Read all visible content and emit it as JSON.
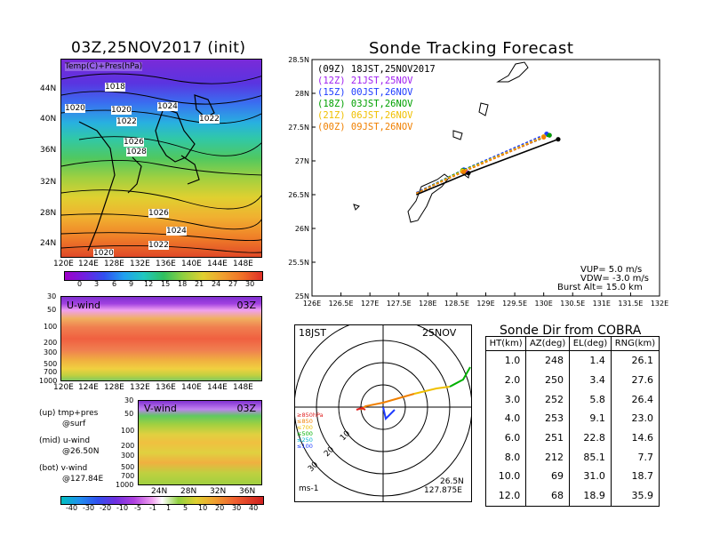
{
  "left": {
    "map_title": "03Z,25NOV2017 (init)",
    "map_field": "Temp(C)+Pres(hPa)",
    "map_lat_ticks": [
      "44N",
      "40N",
      "36N",
      "32N",
      "28N",
      "24N"
    ],
    "map_lon_ticks": [
      "120E",
      "124E",
      "128E",
      "132E",
      "136E",
      "140E",
      "144E",
      "148E"
    ],
    "isobars": [
      "1018",
      "1020",
      "1020",
      "1024",
      "1022",
      "1022",
      "1026",
      "1028",
      "1026",
      "1024",
      "1022",
      "1020"
    ],
    "temp_colorbar": [
      "0",
      "3",
      "6",
      "9",
      "12",
      "15",
      "18",
      "21",
      "24",
      "27",
      "30"
    ],
    "u_title": "U-wind",
    "u_time": "03Z",
    "u_p_ticks": [
      "30",
      "50",
      "100",
      "200",
      "300",
      "500",
      "700",
      "1000"
    ],
    "u_lon_ticks": [
      "120E",
      "124E",
      "128E",
      "132E",
      "136E",
      "140E",
      "144E",
      "148E"
    ],
    "v_title": "V-wind",
    "v_time": "03Z",
    "v_p_ticks": [
      "30",
      "50",
      "100",
      "200",
      "300",
      "500",
      "700",
      "1000"
    ],
    "v_lat_ticks": [
      "24N",
      "28N",
      "32N",
      "36N"
    ],
    "legend_up": "(up) tmp+pres",
    "legend_up2": "@surf",
    "legend_mid": "(mid) u-wind",
    "legend_mid2": "@26.50N",
    "legend_bot": "(bot) v-wind",
    "legend_bot2": "@127.84E",
    "wind_colorbar": [
      "-40",
      "-30",
      "-20",
      "-10",
      "-5",
      "-1",
      "1",
      "5",
      "10",
      "20",
      "30",
      "40"
    ]
  },
  "tracking": {
    "title": "Sonde Tracking Forecast",
    "legend": [
      {
        "label": "(09Z)  18JST,25NOV2017",
        "color": "#000000"
      },
      {
        "label": "(12Z)  21JST,25NOV",
        "color": "#a020f0"
      },
      {
        "label": "(15Z)  00JST,26NOV",
        "color": "#1e3cff"
      },
      {
        "label": "(18Z)  03JST,26NOV",
        "color": "#00a000"
      },
      {
        "label": "(21Z)  06JST,26NOV",
        "color": "#f0c000"
      },
      {
        "label": "(00Z)  09JST,26NOV",
        "color": "#f08000"
      }
    ],
    "params": [
      "VUP=  5.0  m/s",
      "VDW= -3.0  m/s",
      "Burst Alt=  15.0  km"
    ]
  },
  "polar": {
    "time_label": "18JST",
    "date_label": "25NOV",
    "lat_label": "26.5N",
    "lon_label": "127.875E",
    "unit_label": "ms-1",
    "ring_labels": [
      "10",
      "20",
      "30"
    ],
    "level_legend": [
      {
        "label": "≥850hPa",
        "color": "#e02020"
      },
      {
        "label": "≤850",
        "color": "#f08000"
      },
      {
        "label": "≤700",
        "color": "#f0c000"
      },
      {
        "label": "≤500",
        "color": "#00b000"
      },
      {
        "label": "≤250",
        "color": "#00b0d0"
      },
      {
        "label": "≤100",
        "color": "#1e3cff"
      }
    ]
  },
  "table": {
    "title": "Sonde Dir from COBRA",
    "headers": [
      "HT(km)",
      "AZ(deg)",
      "EL(deg)",
      "RNG(km)"
    ],
    "rows": [
      [
        "1.0",
        "248",
        "1.4",
        "26.1"
      ],
      [
        "2.0",
        "250",
        "3.4",
        "27.6"
      ],
      [
        "3.0",
        "252",
        "5.8",
        "26.4"
      ],
      [
        "4.0",
        "253",
        "9.1",
        "23.0"
      ],
      [
        "6.0",
        "251",
        "22.8",
        "14.6"
      ],
      [
        "8.0",
        "212",
        "85.1",
        "7.7"
      ],
      [
        "10.0",
        "69",
        "31.0",
        "18.7"
      ],
      [
        "12.0",
        "68",
        "18.9",
        "35.9"
      ]
    ]
  },
  "chart_data": [
    {
      "type": "line",
      "title": "Sonde Tracking Forecast",
      "xlabel": "",
      "ylabel": "",
      "x_ticks": [
        "126E",
        "126.5E",
        "127E",
        "127.5E",
        "128E",
        "128.5E",
        "129E",
        "129.5E",
        "130E",
        "130.5E",
        "131E",
        "131.5E",
        "132E"
      ],
      "y_ticks": [
        "25N",
        "25.5N",
        "26N",
        "26.5N",
        "27N",
        "27.5N",
        "28N",
        "28.5N"
      ],
      "xlim": [
        126,
        132
      ],
      "ylim": [
        25,
        28.5
      ],
      "series": [
        {
          "name": "(09Z)  18JST,25NOV2017",
          "color": "#000000",
          "x": [
            127.8,
            128.7,
            130.25
          ],
          "y": [
            26.5,
            26.82,
            27.32
          ]
        },
        {
          "name": "(12Z)  21JST,25NOV",
          "color": "#a020f0",
          "x": [
            127.8,
            128.65,
            130.1
          ],
          "y": [
            26.52,
            26.86,
            27.38
          ]
        },
        {
          "name": "(15Z)  00JST,26NOV",
          "color": "#1e3cff",
          "x": [
            127.8,
            128.62,
            130.05
          ],
          "y": [
            26.53,
            26.87,
            27.4
          ]
        },
        {
          "name": "(18Z)  03JST,26NOV",
          "color": "#00a000",
          "x": [
            127.8,
            128.6,
            130.1
          ],
          "y": [
            26.52,
            26.86,
            27.38
          ]
        },
        {
          "name": "(21Z)  06JST,26NOV",
          "color": "#f0c000",
          "x": [
            127.8,
            128.6,
            130.0
          ],
          "y": [
            26.52,
            26.85,
            27.36
          ]
        },
        {
          "name": "(00Z)  09JST,26NOV",
          "color": "#f08000",
          "x": [
            127.8,
            128.62,
            130.0
          ],
          "y": [
            26.52,
            26.84,
            27.35
          ]
        }
      ]
    },
    {
      "type": "table",
      "title": "Sonde Dir from COBRA",
      "columns": [
        "HT(km)",
        "AZ(deg)",
        "EL(deg)",
        "RNG(km)"
      ],
      "rows": [
        [
          1.0,
          248,
          1.4,
          26.1
        ],
        [
          2.0,
          250,
          3.4,
          27.6
        ],
        [
          3.0,
          252,
          5.8,
          26.4
        ],
        [
          4.0,
          253,
          9.1,
          23.0
        ],
        [
          6.0,
          251,
          22.8,
          14.6
        ],
        [
          8.0,
          212,
          85.1,
          7.7
        ],
        [
          10.0,
          69,
          31.0,
          18.7
        ],
        [
          12.0,
          68,
          18.9,
          35.9
        ]
      ]
    }
  ]
}
